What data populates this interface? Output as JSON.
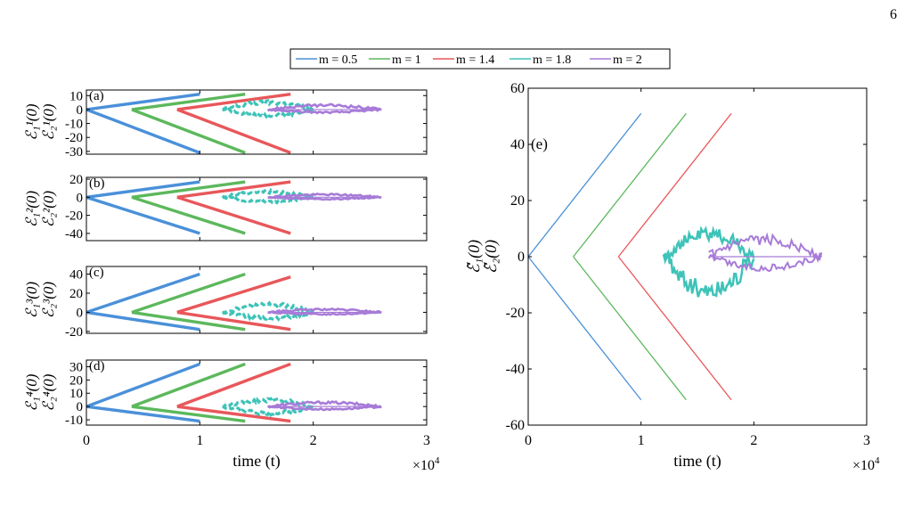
{
  "page": {
    "number": "6"
  },
  "legend": [
    {
      "label": "m = 0.5",
      "color": "#4a90d9"
    },
    {
      "label": "m = 1",
      "color": "#5cb85c"
    },
    {
      "label": "m = 1.4",
      "color": "#e8575a"
    },
    {
      "label": "m = 1.8",
      "color": "#3ec3b8"
    },
    {
      "label": "m = 2",
      "color": "#a77bd8"
    }
  ],
  "chart_data": [
    {
      "type": "line",
      "panel": "(a)",
      "ylabel_lines": [
        "ℰ₁¹(0)",
        "ℰ₂¹(0)"
      ],
      "xlim": [
        0,
        30000
      ],
      "ylim": [
        -32,
        14
      ],
      "yticks": [
        "10",
        "0",
        "-10",
        "-20",
        "-30"
      ],
      "ytick_values": [
        10,
        0,
        -10,
        -20,
        -30
      ],
      "xtick_labels": [],
      "series": [
        {
          "name": "m = 0.5",
          "x": [
            0,
            10000
          ],
          "upper": [
            0,
            11
          ],
          "lower": [
            0,
            -31
          ]
        },
        {
          "name": "m = 1",
          "x": [
            4000,
            14000
          ],
          "upper": [
            0,
            11
          ],
          "lower": [
            0,
            -31
          ]
        },
        {
          "name": "m = 1.4",
          "x": [
            8000,
            18000
          ],
          "upper": [
            0,
            11
          ],
          "lower": [
            0,
            -31
          ]
        },
        {
          "name": "m = 1.8",
          "x": [
            12000,
            20000
          ],
          "upper": [
            0,
            5
          ],
          "lower": [
            0,
            -4
          ]
        },
        {
          "name": "m = 2",
          "x": [
            16000,
            26000
          ],
          "upper": [
            0,
            3
          ],
          "lower": [
            0,
            -2
          ]
        }
      ]
    },
    {
      "type": "line",
      "panel": "(b)",
      "ylabel_lines": [
        "ℰ₁²(0)",
        "ℰ₂²(0)"
      ],
      "xlim": [
        0,
        30000
      ],
      "ylim": [
        -48,
        22
      ],
      "yticks": [
        "20",
        "0",
        "-20",
        "-40"
      ],
      "ytick_values": [
        20,
        0,
        -20,
        -40
      ],
      "xtick_labels": [],
      "series": [
        {
          "name": "m = 0.5",
          "x": [
            0,
            10000
          ],
          "upper": [
            0,
            17
          ],
          "lower": [
            0,
            -40
          ]
        },
        {
          "name": "m = 1",
          "x": [
            4000,
            14000
          ],
          "upper": [
            0,
            17
          ],
          "lower": [
            0,
            -40
          ]
        },
        {
          "name": "m = 1.4",
          "x": [
            8000,
            18000
          ],
          "upper": [
            0,
            17
          ],
          "lower": [
            0,
            -40
          ]
        },
        {
          "name": "m = 1.8",
          "x": [
            12000,
            20000
          ],
          "upper": [
            0,
            6
          ],
          "lower": [
            0,
            -5
          ]
        },
        {
          "name": "m = 2",
          "x": [
            16000,
            26000
          ],
          "upper": [
            0,
            3
          ],
          "lower": [
            0,
            -2
          ]
        }
      ]
    },
    {
      "type": "line",
      "panel": "(c)",
      "ylabel_lines": [
        "ℰ₁³(0)",
        "ℰ₂³(0)"
      ],
      "xlim": [
        0,
        30000
      ],
      "ylim": [
        -22,
        48
      ],
      "yticks": [
        "40",
        "20",
        "0",
        "-20"
      ],
      "ytick_values": [
        40,
        20,
        0,
        -20
      ],
      "xtick_labels": [],
      "series": [
        {
          "name": "m = 0.5",
          "x": [
            0,
            10000
          ],
          "upper": [
            0,
            40
          ],
          "lower": [
            0,
            -18
          ]
        },
        {
          "name": "m = 1",
          "x": [
            4000,
            14000
          ],
          "upper": [
            0,
            40
          ],
          "lower": [
            0,
            -18
          ]
        },
        {
          "name": "m = 1.4",
          "x": [
            8000,
            18000
          ],
          "upper": [
            0,
            37
          ],
          "lower": [
            0,
            -18
          ]
        },
        {
          "name": "m = 1.8",
          "x": [
            12000,
            20000
          ],
          "upper": [
            0,
            8
          ],
          "lower": [
            0,
            -6
          ]
        },
        {
          "name": "m = 2",
          "x": [
            16000,
            26000
          ],
          "upper": [
            0,
            3
          ],
          "lower": [
            0,
            -2
          ]
        }
      ]
    },
    {
      "type": "line",
      "panel": "(d)",
      "ylabel_lines": [
        "ℰ₁⁴(0)",
        "ℰ₂⁴(0)"
      ],
      "xlim": [
        0,
        30000
      ],
      "ylim": [
        -14,
        35
      ],
      "yticks": [
        "30",
        "20",
        "10",
        "0",
        "-10"
      ],
      "ytick_values": [
        30,
        20,
        10,
        0,
        -10
      ],
      "xtick_labels": [
        "0",
        "1",
        "2",
        "3"
      ],
      "xtick_values": [
        0,
        10000,
        20000,
        30000
      ],
      "xlabel": "time (t)",
      "xmultiplier": "×10",
      "series": [
        {
          "name": "m = 0.5",
          "x": [
            0,
            10000
          ],
          "upper": [
            0,
            32
          ],
          "lower": [
            0,
            -11
          ]
        },
        {
          "name": "m = 1",
          "x": [
            4000,
            14000
          ],
          "upper": [
            0,
            32
          ],
          "lower": [
            0,
            -11
          ]
        },
        {
          "name": "m = 1.4",
          "x": [
            8000,
            18000
          ],
          "upper": [
            0,
            32
          ],
          "lower": [
            0,
            -11
          ]
        },
        {
          "name": "m = 1.8",
          "x": [
            12000,
            20000
          ],
          "upper": [
            0,
            5
          ],
          "lower": [
            0,
            -5
          ]
        },
        {
          "name": "m = 2",
          "x": [
            16000,
            26000
          ],
          "upper": [
            0,
            3
          ],
          "lower": [
            0,
            -2
          ]
        }
      ]
    },
    {
      "type": "line",
      "panel": "(e)",
      "ylabel_lines": [
        "ℰ̃₁(0)",
        "ℰ̃₂(0)"
      ],
      "xlim": [
        0,
        30000
      ],
      "ylim": [
        -60,
        60
      ],
      "yticks": [
        "60",
        "40",
        "20",
        "0",
        "-20",
        "-40",
        "-60"
      ],
      "ytick_values": [
        60,
        40,
        20,
        0,
        -20,
        -40,
        -60
      ],
      "xtick_labels": [
        "0",
        "1",
        "2",
        "3"
      ],
      "xtick_values": [
        0,
        10000,
        20000,
        30000
      ],
      "xlabel": "time (t)",
      "xmultiplier": "×10",
      "series": [
        {
          "name": "m = 0.5",
          "x": [
            0,
            10000
          ],
          "upper": [
            0,
            51
          ],
          "lower": [
            0,
            -51
          ]
        },
        {
          "name": "m = 1",
          "x": [
            4000,
            14000
          ],
          "upper": [
            0,
            51
          ],
          "lower": [
            0,
            -51
          ]
        },
        {
          "name": "m = 1.4",
          "x": [
            8000,
            18000
          ],
          "upper": [
            0,
            51
          ],
          "lower": [
            0,
            -51
          ]
        },
        {
          "name": "m = 1.8",
          "x": [
            12000,
            20000
          ],
          "upper": [
            0,
            8
          ],
          "lower": [
            0,
            -12
          ]
        },
        {
          "name": "m = 2",
          "x": [
            16000,
            26000
          ],
          "upper": [
            0,
            6
          ],
          "lower": [
            0,
            -4
          ]
        }
      ]
    }
  ]
}
